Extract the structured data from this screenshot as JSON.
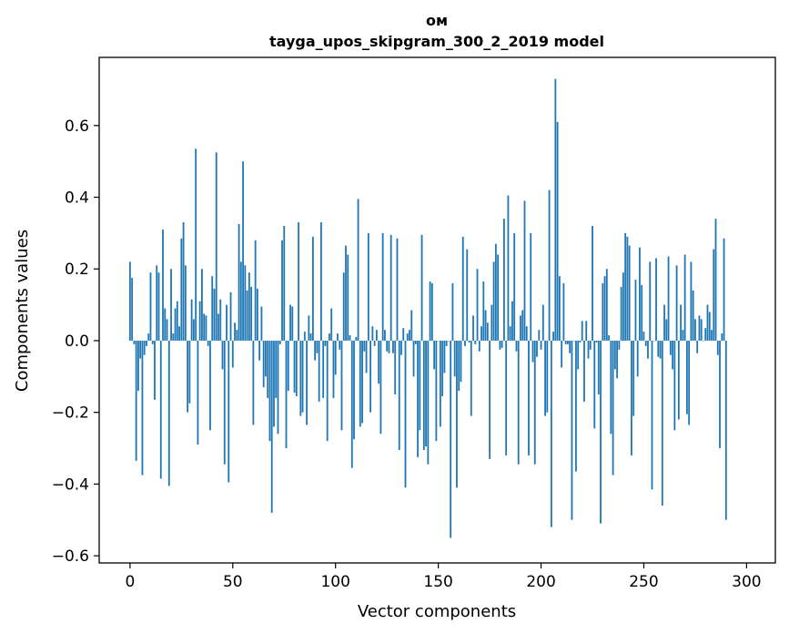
{
  "chart_data": {
    "type": "bar",
    "title": "ом",
    "subtitle": "tayga_upos_skipgram_300_2_2019 model",
    "xlabel": "Vector components",
    "ylabel": "Components values",
    "xlim": [
      -15,
      314
    ],
    "ylim": [
      -0.62,
      0.79
    ],
    "x_ticks": [
      0,
      50,
      100,
      150,
      200,
      250,
      300
    ],
    "y_ticks": [
      -0.6,
      -0.4,
      -0.2,
      0.0,
      0.2,
      0.4,
      0.6
    ],
    "x_tick_labels": [
      "0",
      "50",
      "100",
      "150",
      "200",
      "250",
      "300"
    ],
    "y_tick_labels": [
      "−0.6",
      "−0.4",
      "−0.2",
      "0.0",
      "0.2",
      "0.4",
      "0.6"
    ],
    "color": "#1f77b4",
    "grid": false,
    "legend": "none",
    "values": [
      0.22,
      0.175,
      -0.01,
      -0.335,
      -0.14,
      -0.05,
      -0.375,
      -0.04,
      -0.015,
      0.02,
      0.19,
      -0.01,
      -0.165,
      0.21,
      0.19,
      -0.385,
      0.31,
      0.09,
      0.06,
      -0.405,
      0.2,
      0.02,
      0.09,
      0.11,
      0.04,
      0.285,
      0.33,
      0.21,
      -0.2,
      -0.175,
      0.115,
      0.06,
      0.535,
      -0.29,
      0.11,
      0.2,
      0.075,
      0.07,
      -0.015,
      -0.25,
      0.18,
      0.145,
      0.525,
      0.075,
      0.115,
      -0.08,
      -0.345,
      0.1,
      -0.395,
      0.135,
      -0.075,
      0.05,
      0.03,
      0.325,
      0.22,
      0.5,
      0.21,
      0.14,
      0.19,
      0.15,
      -0.235,
      0.28,
      0.145,
      -0.055,
      0.095,
      -0.13,
      -0.1,
      -0.16,
      -0.28,
      -0.48,
      -0.24,
      -0.16,
      -0.26,
      -0.01,
      0.28,
      0.32,
      -0.3,
      -0.14,
      0.1,
      0.095,
      -0.145,
      -0.155,
      0.33,
      -0.21,
      -0.2,
      0.025,
      -0.235,
      0.07,
      0.02,
      0.29,
      -0.055,
      -0.035,
      -0.17,
      0.33,
      -0.16,
      -0.015,
      -0.28,
      0.02,
      0.09,
      -0.16,
      -0.095,
      0.02,
      -0.025,
      -0.25,
      0.19,
      0.265,
      0.24,
      0.015,
      -0.355,
      -0.275,
      0.01,
      0.395,
      -0.24,
      -0.23,
      -0.03,
      -0.09,
      0.3,
      -0.2,
      0.04,
      -0.015,
      0.03,
      -0.12,
      -0.26,
      0.3,
      0.03,
      -0.03,
      -0.035,
      0.295,
      -0.035,
      -0.15,
      0.285,
      -0.305,
      -0.04,
      0.035,
      -0.41,
      0.02,
      0.03,
      0.085,
      -0.1,
      -0.01,
      -0.325,
      -0.25,
      0.295,
      -0.305,
      -0.295,
      -0.345,
      0.165,
      0.16,
      -0.08,
      -0.28,
      0.0,
      -0.24,
      -0.155,
      -0.09,
      -0.015,
      0.0,
      -0.55,
      0.16,
      -0.1,
      -0.41,
      -0.14,
      -0.115,
      0.29,
      -0.015,
      0.255,
      -0.005,
      -0.21,
      0.07,
      -0.01,
      0.2,
      -0.03,
      0.04,
      0.165,
      0.085,
      0.05,
      -0.33,
      0.1,
      0.22,
      0.27,
      0.24,
      -0.025,
      -0.02,
      0.34,
      -0.32,
      0.405,
      0.04,
      0.11,
      0.3,
      -0.03,
      -0.345,
      0.07,
      0.085,
      0.39,
      0.04,
      -0.32,
      0.3,
      -0.06,
      -0.345,
      -0.045,
      0.03,
      -0.025,
      0.1,
      -0.21,
      -0.2,
      0.42,
      -0.52,
      0.025,
      0.73,
      0.61,
      0.18,
      -0.075,
      0.16,
      -0.01,
      -0.01,
      -0.035,
      -0.5,
      0.0,
      -0.365,
      -0.08,
      -0.005,
      0.055,
      -0.17,
      0.055,
      -0.05,
      -0.025,
      0.32,
      -0.245,
      -0.005,
      -0.15,
      -0.51,
      0.16,
      0.18,
      0.2,
      0.015,
      -0.26,
      -0.375,
      -0.08,
      -0.105,
      -0.025,
      0.15,
      0.19,
      0.3,
      0.29,
      0.265,
      -0.32,
      -0.21,
      0.17,
      -0.1,
      0.26,
      0.155,
      0.025,
      -0.015,
      -0.05,
      0.22,
      -0.415,
      0.0,
      0.23,
      -0.045,
      -0.05,
      -0.46,
      0.1,
      0.06,
      0.235,
      -0.04,
      -0.08,
      -0.25,
      0.21,
      -0.22,
      0.1,
      0.03,
      0.24,
      -0.205,
      -0.235,
      0.22,
      0.14,
      0.06,
      -0.035,
      0.07,
      0.06,
      0.0,
      0.035,
      0.1,
      0.08,
      0.03,
      0.255,
      0.34,
      -0.04,
      -0.3,
      0.02,
      0.285,
      -0.5
    ]
  }
}
